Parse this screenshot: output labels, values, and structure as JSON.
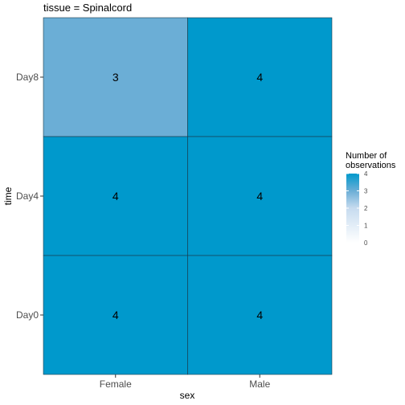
{
  "chart_data": {
    "type": "heatmap",
    "title": "tissue = Spinalcord",
    "xlabel": "sex",
    "ylabel": "time",
    "x_categories": [
      "Female",
      "Male"
    ],
    "y_categories": [
      "Day0",
      "Day4",
      "Day8"
    ],
    "cells": [
      {
        "x": "Female",
        "y": "Day8",
        "value": 3
      },
      {
        "x": "Male",
        "y": "Day8",
        "value": 4
      },
      {
        "x": "Female",
        "y": "Day4",
        "value": 4
      },
      {
        "x": "Male",
        "y": "Day4",
        "value": 4
      },
      {
        "x": "Female",
        "y": "Day0",
        "value": 4
      },
      {
        "x": "Male",
        "y": "Day0",
        "value": 4
      }
    ],
    "legend": {
      "title_line1": "Number of",
      "title_line2": "observations",
      "ticks": [
        0,
        1,
        2,
        3,
        4
      ],
      "range": [
        0,
        4
      ],
      "low_color": "#ffffff",
      "high_color": "#0099cc",
      "mid_color": "#6baed6"
    },
    "grid": false,
    "legend_position": "right"
  }
}
